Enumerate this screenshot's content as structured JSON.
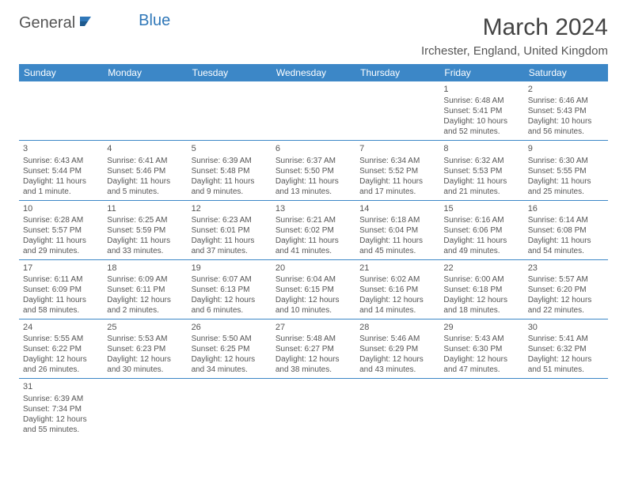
{
  "logo": {
    "part1": "General",
    "part2": "Blue"
  },
  "title": "March 2024",
  "location": "Irchester, England, United Kingdom",
  "colors": {
    "header_bg": "#3c87c7",
    "header_text": "#ffffff",
    "border": "#3c87c7",
    "logo_accent": "#2f77b8"
  },
  "day_headers": [
    "Sunday",
    "Monday",
    "Tuesday",
    "Wednesday",
    "Thursday",
    "Friday",
    "Saturday"
  ],
  "weeks": [
    [
      null,
      null,
      null,
      null,
      null,
      {
        "n": "1",
        "sr": "Sunrise: 6:48 AM",
        "ss": "Sunset: 5:41 PM",
        "dl1": "Daylight: 10 hours",
        "dl2": "and 52 minutes."
      },
      {
        "n": "2",
        "sr": "Sunrise: 6:46 AM",
        "ss": "Sunset: 5:43 PM",
        "dl1": "Daylight: 10 hours",
        "dl2": "and 56 minutes."
      }
    ],
    [
      {
        "n": "3",
        "sr": "Sunrise: 6:43 AM",
        "ss": "Sunset: 5:44 PM",
        "dl1": "Daylight: 11 hours",
        "dl2": "and 1 minute."
      },
      {
        "n": "4",
        "sr": "Sunrise: 6:41 AM",
        "ss": "Sunset: 5:46 PM",
        "dl1": "Daylight: 11 hours",
        "dl2": "and 5 minutes."
      },
      {
        "n": "5",
        "sr": "Sunrise: 6:39 AM",
        "ss": "Sunset: 5:48 PM",
        "dl1": "Daylight: 11 hours",
        "dl2": "and 9 minutes."
      },
      {
        "n": "6",
        "sr": "Sunrise: 6:37 AM",
        "ss": "Sunset: 5:50 PM",
        "dl1": "Daylight: 11 hours",
        "dl2": "and 13 minutes."
      },
      {
        "n": "7",
        "sr": "Sunrise: 6:34 AM",
        "ss": "Sunset: 5:52 PM",
        "dl1": "Daylight: 11 hours",
        "dl2": "and 17 minutes."
      },
      {
        "n": "8",
        "sr": "Sunrise: 6:32 AM",
        "ss": "Sunset: 5:53 PM",
        "dl1": "Daylight: 11 hours",
        "dl2": "and 21 minutes."
      },
      {
        "n": "9",
        "sr": "Sunrise: 6:30 AM",
        "ss": "Sunset: 5:55 PM",
        "dl1": "Daylight: 11 hours",
        "dl2": "and 25 minutes."
      }
    ],
    [
      {
        "n": "10",
        "sr": "Sunrise: 6:28 AM",
        "ss": "Sunset: 5:57 PM",
        "dl1": "Daylight: 11 hours",
        "dl2": "and 29 minutes."
      },
      {
        "n": "11",
        "sr": "Sunrise: 6:25 AM",
        "ss": "Sunset: 5:59 PM",
        "dl1": "Daylight: 11 hours",
        "dl2": "and 33 minutes."
      },
      {
        "n": "12",
        "sr": "Sunrise: 6:23 AM",
        "ss": "Sunset: 6:01 PM",
        "dl1": "Daylight: 11 hours",
        "dl2": "and 37 minutes."
      },
      {
        "n": "13",
        "sr": "Sunrise: 6:21 AM",
        "ss": "Sunset: 6:02 PM",
        "dl1": "Daylight: 11 hours",
        "dl2": "and 41 minutes."
      },
      {
        "n": "14",
        "sr": "Sunrise: 6:18 AM",
        "ss": "Sunset: 6:04 PM",
        "dl1": "Daylight: 11 hours",
        "dl2": "and 45 minutes."
      },
      {
        "n": "15",
        "sr": "Sunrise: 6:16 AM",
        "ss": "Sunset: 6:06 PM",
        "dl1": "Daylight: 11 hours",
        "dl2": "and 49 minutes."
      },
      {
        "n": "16",
        "sr": "Sunrise: 6:14 AM",
        "ss": "Sunset: 6:08 PM",
        "dl1": "Daylight: 11 hours",
        "dl2": "and 54 minutes."
      }
    ],
    [
      {
        "n": "17",
        "sr": "Sunrise: 6:11 AM",
        "ss": "Sunset: 6:09 PM",
        "dl1": "Daylight: 11 hours",
        "dl2": "and 58 minutes."
      },
      {
        "n": "18",
        "sr": "Sunrise: 6:09 AM",
        "ss": "Sunset: 6:11 PM",
        "dl1": "Daylight: 12 hours",
        "dl2": "and 2 minutes."
      },
      {
        "n": "19",
        "sr": "Sunrise: 6:07 AM",
        "ss": "Sunset: 6:13 PM",
        "dl1": "Daylight: 12 hours",
        "dl2": "and 6 minutes."
      },
      {
        "n": "20",
        "sr": "Sunrise: 6:04 AM",
        "ss": "Sunset: 6:15 PM",
        "dl1": "Daylight: 12 hours",
        "dl2": "and 10 minutes."
      },
      {
        "n": "21",
        "sr": "Sunrise: 6:02 AM",
        "ss": "Sunset: 6:16 PM",
        "dl1": "Daylight: 12 hours",
        "dl2": "and 14 minutes."
      },
      {
        "n": "22",
        "sr": "Sunrise: 6:00 AM",
        "ss": "Sunset: 6:18 PM",
        "dl1": "Daylight: 12 hours",
        "dl2": "and 18 minutes."
      },
      {
        "n": "23",
        "sr": "Sunrise: 5:57 AM",
        "ss": "Sunset: 6:20 PM",
        "dl1": "Daylight: 12 hours",
        "dl2": "and 22 minutes."
      }
    ],
    [
      {
        "n": "24",
        "sr": "Sunrise: 5:55 AM",
        "ss": "Sunset: 6:22 PM",
        "dl1": "Daylight: 12 hours",
        "dl2": "and 26 minutes."
      },
      {
        "n": "25",
        "sr": "Sunrise: 5:53 AM",
        "ss": "Sunset: 6:23 PM",
        "dl1": "Daylight: 12 hours",
        "dl2": "and 30 minutes."
      },
      {
        "n": "26",
        "sr": "Sunrise: 5:50 AM",
        "ss": "Sunset: 6:25 PM",
        "dl1": "Daylight: 12 hours",
        "dl2": "and 34 minutes."
      },
      {
        "n": "27",
        "sr": "Sunrise: 5:48 AM",
        "ss": "Sunset: 6:27 PM",
        "dl1": "Daylight: 12 hours",
        "dl2": "and 38 minutes."
      },
      {
        "n": "28",
        "sr": "Sunrise: 5:46 AM",
        "ss": "Sunset: 6:29 PM",
        "dl1": "Daylight: 12 hours",
        "dl2": "and 43 minutes."
      },
      {
        "n": "29",
        "sr": "Sunrise: 5:43 AM",
        "ss": "Sunset: 6:30 PM",
        "dl1": "Daylight: 12 hours",
        "dl2": "and 47 minutes."
      },
      {
        "n": "30",
        "sr": "Sunrise: 5:41 AM",
        "ss": "Sunset: 6:32 PM",
        "dl1": "Daylight: 12 hours",
        "dl2": "and 51 minutes."
      }
    ],
    [
      {
        "n": "31",
        "sr": "Sunrise: 6:39 AM",
        "ss": "Sunset: 7:34 PM",
        "dl1": "Daylight: 12 hours",
        "dl2": "and 55 minutes."
      },
      null,
      null,
      null,
      null,
      null,
      null
    ]
  ]
}
